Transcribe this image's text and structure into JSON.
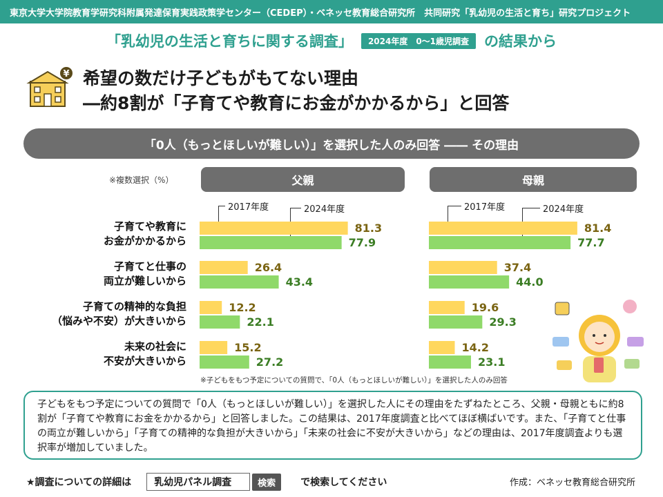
{
  "header": {
    "banner": "東京大学大学院教育学研究科附属発達保育実践政策学センター（CEDEP）・ベネッセ教育総合研究所　共同研究「乳幼児の生活と育ち」研究プロジェクト",
    "survey_name": "「乳幼児の生活と育ちに関する調査」",
    "survey_badge": "2024年度　0～1歳児調査",
    "survey_suffix": "の結果から"
  },
  "headline": {
    "line1": "希望の数だけ子どもがもてない理由",
    "line2": "―約8割が「子育てや教育にお金がかかるから」と回答"
  },
  "question": "「0人（もっとほしいが難しい）」を選択した人のみ回答 ―― その理由",
  "note_multi": "※複数選択（%）",
  "footnote": "※子どもをもつ予定についての質問で、「0人（もっとほしいが難しい）」を選択した人のみ回答",
  "chart_data": {
    "type": "bar",
    "orientation": "horizontal",
    "categories": [
      [
        "子育てや教育に",
        "お金がかかるから"
      ],
      [
        "子育てと仕事の",
        "両立が難しいから"
      ],
      [
        "子育ての精神的な負担",
        "（悩みや不安）が大きいから"
      ],
      [
        "未来の社会に",
        "不安が大きいから"
      ]
    ],
    "series_labels": [
      "2017年度",
      "2024年度"
    ],
    "colors": {
      "y2017": "#ffd75e",
      "y2024": "#8fd96a"
    },
    "xlim": [
      0,
      100
    ],
    "panels": [
      {
        "title": "父親",
        "series": [
          {
            "name": "2017年度",
            "values": [
              81.3,
              26.4,
              12.2,
              15.2
            ]
          },
          {
            "name": "2024年度",
            "values": [
              77.9,
              43.4,
              22.1,
              27.2
            ]
          }
        ]
      },
      {
        "title": "母親",
        "series": [
          {
            "name": "2017年度",
            "values": [
              81.4,
              37.4,
              19.6,
              14.2
            ]
          },
          {
            "name": "2024年度",
            "values": [
              77.7,
              44.0,
              29.3,
              23.1
            ]
          }
        ]
      }
    ]
  },
  "summary": "子どもをもつ予定についての質問で「0人（もっとほしいが難しい）」を選択した人にその理由をたずねたところ、父親・母親ともに約8割が「子育てや教育にお金をかかるから」と回答しました。この結果は、2017年度調査と比べてほぼ横ばいです。また、「子育てと仕事の両立が難しいから」「子育ての精神的な負担が大きいから」「未来の社会に不安が大きいから」などの理由は、2017年度調査よりも選択率が増加していました。",
  "bottom": {
    "prefix": "★調査についての詳細は",
    "search_value": "乳幼児パネル調査",
    "search_button": "検索",
    "suffix": "で検索してください",
    "credit": "作成：ベネッセ教育総合研究所"
  },
  "theme": {
    "accent": "#2fa08f",
    "gray": "#6e6e6e"
  }
}
